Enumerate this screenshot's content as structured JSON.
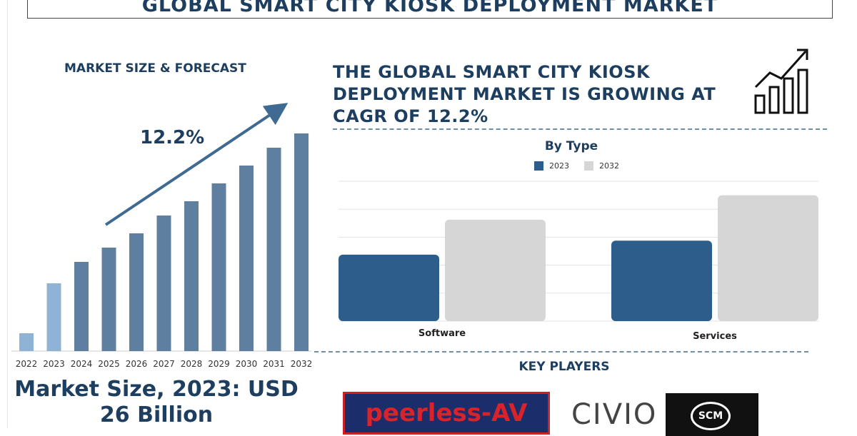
{
  "title": "GLOBAL SMART CITY KIOSK DEPLOYMENT MARKET",
  "left_panel": {
    "heading": "MARKET SIZE & FORECAST",
    "cagr": "12.2%",
    "market_size_text": "Market Size, 2023: USD 26 Billion"
  },
  "headline": "THE GLOBAL SMART CITY KIOSK DEPLOYMENT MARKET IS GROWING AT CAGR OF 12.2%",
  "key_players": {
    "heading": "KEY PLAYERS",
    "logos": [
      "peerless-AV",
      "CIVIO",
      "SCM"
    ]
  },
  "colors": {
    "dark_blue": "#1d3e5e",
    "bar_blue": "#5f7fa0",
    "bar_light_blue": "#8fb3d5",
    "series_2023": "#2d5d8a",
    "series_2032": "#d6d6d6"
  },
  "chart_data": [
    {
      "type": "bar",
      "title": "",
      "categories": [
        "2022",
        "2023",
        "2024",
        "2025",
        "2026",
        "2027",
        "2028",
        "2029",
        "2030",
        "2031",
        "2032"
      ],
      "values": [
        2.5,
        9.5,
        12.5,
        14.5,
        16.5,
        19,
        21,
        23.5,
        26,
        28.5,
        30.5
      ],
      "ylim": [
        0,
        33
      ],
      "xlabel": "",
      "ylabel": "",
      "grid": false,
      "annotation": "12.2%"
    },
    {
      "type": "bar",
      "title": "By Type",
      "categories": [
        "Software",
        "Services"
      ],
      "series": [
        {
          "name": "2023",
          "values": [
            38,
            46
          ]
        },
        {
          "name": "2032",
          "values": [
            58,
            72
          ]
        }
      ],
      "ylim": [
        0,
        80
      ],
      "legend": "top-center",
      "grid": true
    }
  ]
}
